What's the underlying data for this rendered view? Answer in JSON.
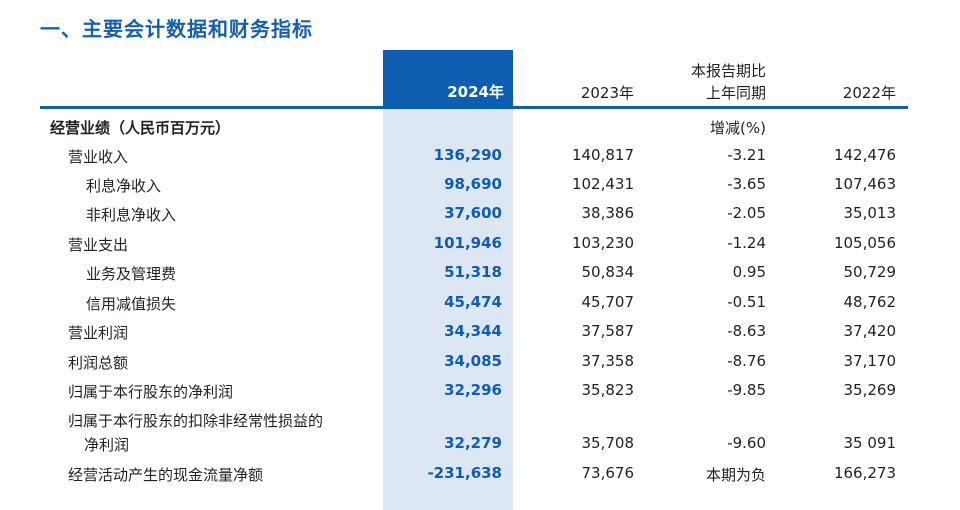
{
  "title": "一、主要会计数据和财务指标",
  "header": {
    "col_2024": "2024年",
    "col_2023": "2023年",
    "col_yoy_line1": "本报告期比",
    "col_yoy_line2": "上年同期",
    "col_2022": "2022年"
  },
  "section": {
    "label": "经营业绩（人民币百万元）",
    "unit": "增减(%)"
  },
  "rows": [
    {
      "label": "营业收入",
      "v2024": "136,290",
      "v2023": "140,817",
      "yoy": "-3.21",
      "v2022": "142,476"
    },
    {
      "label": "利息净收入",
      "v2024": "98,690",
      "v2023": "102,431",
      "yoy": "-3.65",
      "v2022": "107,463"
    },
    {
      "label": "非利息净收入",
      "v2024": "37,600",
      "v2023": "38,386",
      "yoy": "-2.05",
      "v2022": "35,013"
    },
    {
      "label": "营业支出",
      "v2024": "101,946",
      "v2023": "103,230",
      "yoy": "-1.24",
      "v2022": "105,056"
    },
    {
      "label": "业务及管理费",
      "v2024": "51,318",
      "v2023": "50,834",
      "yoy": "0.95",
      "v2022": "50,729"
    },
    {
      "label": "信用减值损失",
      "v2024": "45,474",
      "v2023": "45,707",
      "yoy": "-0.51",
      "v2022": "48,762"
    },
    {
      "label": "营业利润",
      "v2024": "34,344",
      "v2023": "37,587",
      "yoy": "-8.63",
      "v2022": "37,420"
    },
    {
      "label": "利润总额",
      "v2024": "34,085",
      "v2023": "37,358",
      "yoy": "-8.76",
      "v2022": "37,170"
    },
    {
      "label": "归属于本行股东的净利润",
      "v2024": "32,296",
      "v2023": "35,823",
      "yoy": "-9.85",
      "v2022": "35,269"
    },
    {
      "label_line1": "归属于本行股东的扣除非经常性损益的",
      "label": "净利润",
      "v2024": "32,279",
      "v2023": "35,708",
      "yoy": "-9.60",
      "v2022": "35 091"
    },
    {
      "label": "经营活动产生的现金流量净额",
      "v2024": "-231,638",
      "v2023": "73,676",
      "yoy": "本期为负",
      "v2022": "166,273"
    }
  ]
}
